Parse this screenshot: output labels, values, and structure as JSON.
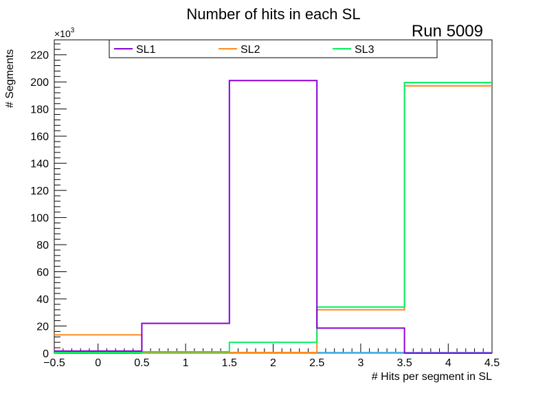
{
  "chart_data": {
    "type": "step-histogram",
    "title": "Number of hits in each SL",
    "annotation": "Run 5009",
    "xlabel": "# Hits per segment in SL",
    "ylabel": "# Segments",
    "y_multiplier": "×10",
    "y_multiplier_exp": "3",
    "xlim": [
      -0.5,
      4.5
    ],
    "ylim": [
      0,
      231
    ],
    "x_ticks": [
      "−0.5",
      "0",
      "0.5",
      "1",
      "1.5",
      "2",
      "2.5",
      "3",
      "3.5",
      "4",
      "4.5"
    ],
    "x_tick_values": [
      -0.5,
      0,
      0.5,
      1,
      1.5,
      2,
      2.5,
      3,
      3.5,
      4,
      4.5
    ],
    "y_ticks": [
      "0",
      "20",
      "40",
      "60",
      "80",
      "100",
      "120",
      "140",
      "160",
      "180",
      "200",
      "220"
    ],
    "y_tick_values": [
      0,
      20,
      40,
      60,
      80,
      100,
      120,
      140,
      160,
      180,
      200,
      220
    ],
    "bin_edges": [
      -0.5,
      0.5,
      1.5,
      2.5,
      3.5,
      4.5
    ],
    "legend_position": "top",
    "series": [
      {
        "name": "SL1",
        "color": "#8b00d9",
        "values": [
          1.5,
          22,
          201,
          18.5,
          0
        ]
      },
      {
        "name": "SL2",
        "color": "#ff8c1a",
        "values": [
          13.5,
          0.5,
          0.5,
          32,
          197
        ]
      },
      {
        "name": "SL3",
        "color": "#00f060",
        "values": [
          0.5,
          1,
          8,
          34,
          199.5
        ]
      }
    ],
    "extra_series_color": "#3da7e6"
  }
}
